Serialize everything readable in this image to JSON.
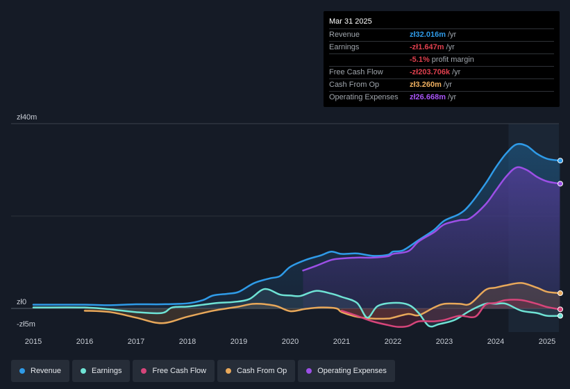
{
  "tooltip": {
    "date": "Mar 31 2025",
    "rows": [
      {
        "label": "Revenue",
        "value": "zł32.016m",
        "unit": "/yr",
        "color": "#2f9be8"
      },
      {
        "label": "Earnings",
        "value": "-zł1.647m",
        "unit": "/yr",
        "color": "#e0404e"
      },
      {
        "label": "",
        "value": "-5.1%",
        "unit": "profit margin",
        "color": "#e0404e"
      },
      {
        "label": "Free Cash Flow",
        "value": "-zł203.706k",
        "unit": "/yr",
        "color": "#e0404e"
      },
      {
        "label": "Cash From Op",
        "value": "zł3.260m",
        "unit": "/yr",
        "color": "#f0b060"
      },
      {
        "label": "Operating Expenses",
        "value": "zł26.668m",
        "unit": "/yr",
        "color": "#a855f7"
      }
    ]
  },
  "legend": [
    {
      "label": "Revenue",
      "color": "#2f9be8"
    },
    {
      "label": "Earnings",
      "color": "#6fe3d5"
    },
    {
      "label": "Free Cash Flow",
      "color": "#d6457a"
    },
    {
      "label": "Cash From Op",
      "color": "#e8a85a"
    },
    {
      "label": "Operating Expenses",
      "color": "#9c4fe6"
    }
  ],
  "chart_data": {
    "type": "area",
    "title": "",
    "y_tick_labels": [
      "zł40m",
      "zł0",
      "-zł5m"
    ],
    "ylim": [
      -5,
      40
    ],
    "xlim": [
      2014.8,
      2025.25
    ],
    "x_tick_labels": [
      "2015",
      "2016",
      "2017",
      "2018",
      "2019",
      "2020",
      "2021",
      "2022",
      "2023",
      "2024",
      "2025"
    ],
    "x_ticks": [
      2015,
      2016,
      2017,
      2018,
      2019,
      2020,
      2021,
      2022,
      2023,
      2024,
      2025
    ],
    "highlight_from": 2024.25,
    "series": [
      {
        "name": "Revenue",
        "color": "#2f9be8",
        "x": [
          2015,
          2016,
          2016.5,
          2017,
          2017.5,
          2018,
          2018.3,
          2018.5,
          2018.8,
          2019,
          2019.3,
          2019.6,
          2019.8,
          2020,
          2020.3,
          2020.6,
          2020.8,
          2021,
          2021.3,
          2021.6,
          2021.9,
          2022,
          2022.2,
          2022.5,
          2022.8,
          2023,
          2023.3,
          2023.5,
          2023.8,
          2024,
          2024.2,
          2024.4,
          2024.6,
          2024.8,
          2025,
          2025.25
        ],
        "values": [
          0.8,
          0.8,
          0.7,
          0.9,
          0.9,
          1.1,
          1.8,
          2.8,
          3.2,
          3.6,
          5.5,
          6.5,
          7.0,
          9.0,
          10.5,
          11.5,
          12.3,
          11.8,
          11.9,
          11.4,
          11.6,
          12.3,
          12.6,
          14.8,
          17.0,
          19.0,
          20.5,
          22.5,
          27.0,
          30.5,
          33.5,
          35.5,
          35.2,
          33.5,
          32.4,
          32.0
        ]
      },
      {
        "name": "Earnings",
        "color": "#6fe3d5",
        "x": [
          2015,
          2016,
          2016.5,
          2017,
          2017.5,
          2017.7,
          2018,
          2018.3,
          2018.6,
          2018.9,
          2019.2,
          2019.5,
          2019.8,
          2020,
          2020.2,
          2020.5,
          2020.8,
          2021,
          2021.3,
          2021.5,
          2021.7,
          2022,
          2022.3,
          2022.5,
          2022.7,
          2022.9,
          2023.2,
          2023.5,
          2023.8,
          2024,
          2024.2,
          2024.5,
          2024.8,
          2025,
          2025.25
        ],
        "values": [
          0.2,
          0.2,
          -0.2,
          -0.8,
          -1.0,
          0.2,
          0.4,
          0.8,
          1.2,
          1.4,
          2.0,
          4.2,
          3.0,
          2.8,
          2.7,
          3.8,
          3.2,
          2.5,
          1.2,
          -2.0,
          0.5,
          1.2,
          0.8,
          -1.0,
          -3.8,
          -3.4,
          -2.5,
          -0.5,
          1.0,
          1.0,
          1.0,
          -0.5,
          -1.0,
          -1.6,
          -1.6
        ]
      },
      {
        "name": "Free Cash Flow",
        "color": "#d6457a",
        "x": [
          2021,
          2021.3,
          2021.6,
          2021.9,
          2022.1,
          2022.3,
          2022.5,
          2022.8,
          2023,
          2023.3,
          2023.6,
          2023.8,
          2024,
          2024.2,
          2024.5,
          2024.8,
          2025,
          2025.25
        ],
        "values": [
          -0.5,
          -1.6,
          -2.8,
          -3.6,
          -4.0,
          -3.8,
          -2.8,
          -2.8,
          -2.5,
          -1.6,
          -1.8,
          0.8,
          1.2,
          1.8,
          1.8,
          1.0,
          0.3,
          -0.2
        ]
      },
      {
        "name": "Cash From Op",
        "color": "#e8a85a",
        "x": [
          2016,
          2016.5,
          2017,
          2017.5,
          2018,
          2018.5,
          2019,
          2019.3,
          2019.7,
          2020,
          2020.3,
          2020.6,
          2020.9,
          2021,
          2021.3,
          2021.6,
          2021.9,
          2022,
          2022.3,
          2022.5,
          2022.8,
          2023,
          2023.3,
          2023.5,
          2023.8,
          2024,
          2024.2,
          2024.5,
          2024.8,
          2025,
          2025.25
        ],
        "values": [
          -0.5,
          -0.8,
          -2.0,
          -3.2,
          -1.8,
          -0.5,
          0.4,
          1.0,
          0.6,
          -0.6,
          -0.1,
          0.2,
          0.0,
          -0.8,
          -1.8,
          -2.2,
          -2.2,
          -2.0,
          -1.2,
          -1.5,
          0.2,
          1.0,
          1.0,
          1.0,
          4.0,
          4.5,
          5.0,
          5.5,
          4.5,
          3.6,
          3.3
        ]
      },
      {
        "name": "Operating Expenses",
        "color": "#9c4fe6",
        "x": [
          2020.25,
          2020.5,
          2020.8,
          2021,
          2021.3,
          2021.6,
          2021.9,
          2022,
          2022.3,
          2022.5,
          2022.8,
          2023,
          2023.3,
          2023.5,
          2023.8,
          2024,
          2024.2,
          2024.4,
          2024.6,
          2024.8,
          2025,
          2025.25
        ],
        "values": [
          8.2,
          9.2,
          10.5,
          10.8,
          11.0,
          11.0,
          11.3,
          11.8,
          12.4,
          14.5,
          16.5,
          18.2,
          19.1,
          19.5,
          22.5,
          25.5,
          28.5,
          30.5,
          30.0,
          28.5,
          27.5,
          27.0
        ]
      }
    ]
  }
}
